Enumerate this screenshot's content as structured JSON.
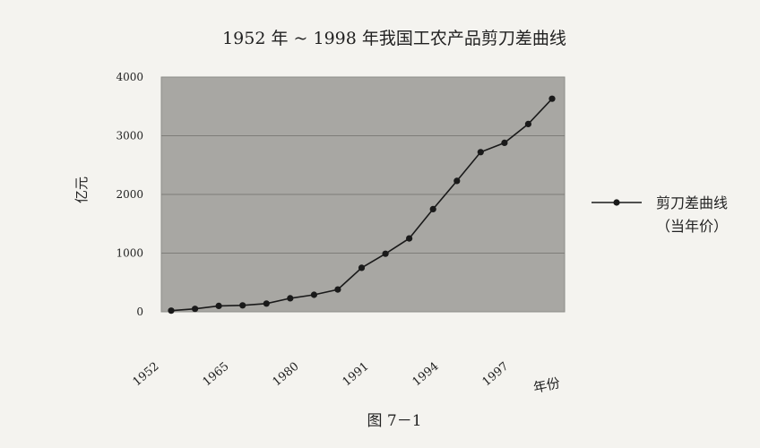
{
  "chart_data": {
    "type": "line",
    "title": "1952 年 ~ 1998 年我国工农产品剪刀差曲线",
    "ylabel": "亿元",
    "xlabel": "年份",
    "caption": "图 7－1",
    "ylim": [
      0,
      4000
    ],
    "yticks": [
      "4000",
      "3000",
      "2000",
      "1000",
      "0"
    ],
    "ytick_values": [
      4000,
      3000,
      2000,
      1000,
      0
    ],
    "xtick_labels": [
      "1952",
      "1965",
      "1980",
      "1991",
      "1994",
      "1997"
    ],
    "grid": true,
    "legend": {
      "position": "right",
      "entries": [
        "剪刀差曲线",
        "（当年价）"
      ]
    },
    "series": [
      {
        "name": "剪刀差曲线（当年价）",
        "color": "#1a1a1a",
        "values": [
          20,
          50,
          100,
          110,
          140,
          230,
          290,
          380,
          750,
          990,
          1250,
          1750,
          2230,
          2720,
          2880,
          3200,
          3630
        ]
      }
    ]
  }
}
